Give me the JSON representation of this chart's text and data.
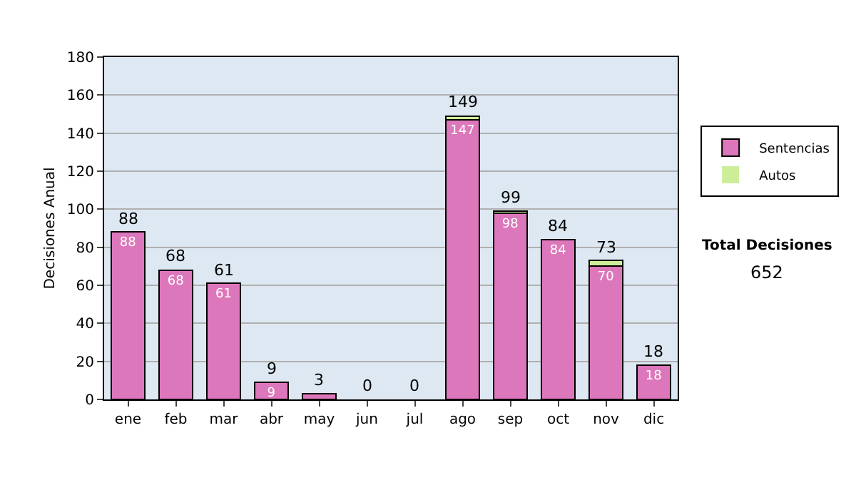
{
  "chart_data": {
    "type": "bar",
    "stacked": true,
    "ylabel": "Decisiones Anual",
    "categories": [
      "ene",
      "feb",
      "mar",
      "abr",
      "may",
      "jun",
      "jul",
      "ago",
      "sep",
      "oct",
      "nov",
      "dic"
    ],
    "series": [
      {
        "name": "Sentencias",
        "color": "#dd77bb",
        "values": [
          88,
          68,
          61,
          9,
          3,
          0,
          0,
          147,
          98,
          84,
          70,
          18
        ],
        "value_labels": [
          "88",
          "68",
          "61",
          "9",
          null,
          null,
          null,
          "147",
          "98",
          "84",
          "70",
          "18"
        ]
      },
      {
        "name": "Autos",
        "color": "#ccee99",
        "values": [
          0,
          0,
          0,
          0,
          0,
          0,
          0,
          2,
          1,
          0,
          3,
          0
        ]
      }
    ],
    "totals": [
      "88",
      "68",
      "61",
      "9",
      "3",
      "0",
      "0",
      "149",
      "99",
      "84",
      "73",
      "18"
    ],
    "ylim": [
      0,
      180
    ],
    "yticks": [
      0,
      20,
      40,
      60,
      80,
      100,
      120,
      140,
      160,
      180
    ],
    "grid": "y",
    "legend": "right",
    "annotations": [
      "Total Decisiones",
      "652"
    ]
  }
}
